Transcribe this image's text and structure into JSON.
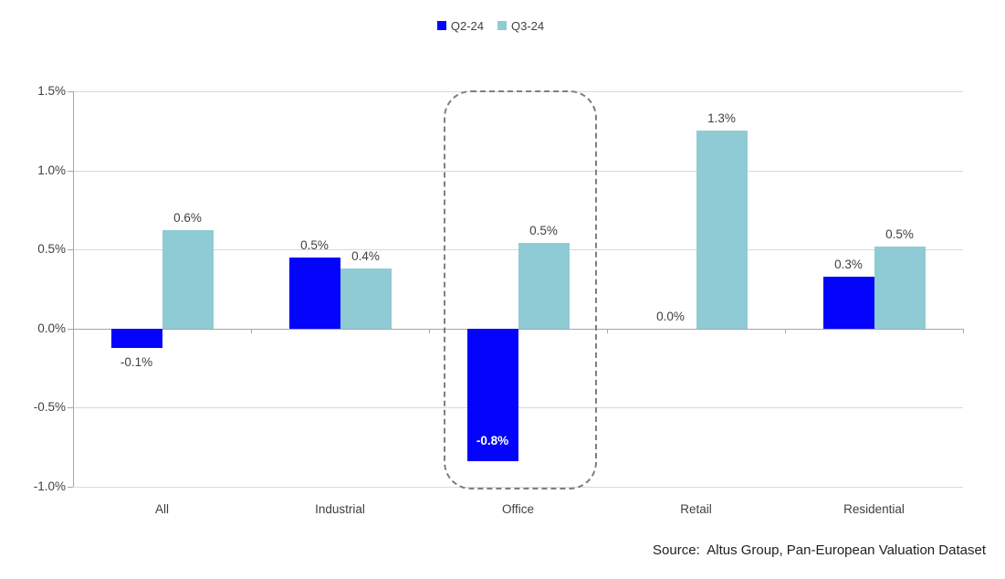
{
  "chart_data": {
    "type": "bar",
    "title": "",
    "categories": [
      "All",
      "Industrial",
      "Office",
      "Retail",
      "Residential"
    ],
    "series": [
      {
        "name": "Q2-24",
        "color": "#0404FC",
        "values": [
          -0.12,
          0.45,
          -0.84,
          0.0,
          0.33
        ],
        "labels": [
          "-0.1%",
          "0.5%",
          "-0.8%",
          "0.0%",
          "0.3%"
        ],
        "label_pos": [
          "below",
          "above",
          "inside-bottom",
          "above",
          "above"
        ]
      },
      {
        "name": "Q3-24",
        "color": "#8FCBD4",
        "values": [
          0.62,
          0.38,
          0.54,
          1.25,
          0.52
        ],
        "labels": [
          "0.6%",
          "0.4%",
          "0.5%",
          "1.3%",
          "0.5%"
        ],
        "label_pos": [
          "above",
          "above",
          "above",
          "above",
          "above"
        ]
      }
    ],
    "y_ticks": [
      {
        "value": 1.5,
        "label": "1.5%"
      },
      {
        "value": 1.0,
        "label": "1.0%"
      },
      {
        "value": 0.5,
        "label": "0.5%"
      },
      {
        "value": 0.0,
        "label": "0.0%"
      },
      {
        "value": -0.5,
        "label": "-0.5%"
      },
      {
        "value": -1.0,
        "label": "-1.0%"
      }
    ],
    "ylim": [
      -1.0,
      1.5
    ],
    "xlabel": "",
    "ylabel": "",
    "grid": true,
    "legend_position": "top-center",
    "highlight": {
      "category": "Office",
      "style": "dashed-rounded-rect",
      "color": "#7F7F7F"
    }
  },
  "colors": {
    "q2": "#0404FC",
    "q3": "#8FCBD4",
    "gridline": "#D9D9D9",
    "axis": "#A6A6A6",
    "label_text": "#3F3F3F",
    "inside_label_text": "#FFFFFF"
  },
  "source": {
    "text": "Source:  Altus Group, Pan-European Valuation Dataset"
  }
}
